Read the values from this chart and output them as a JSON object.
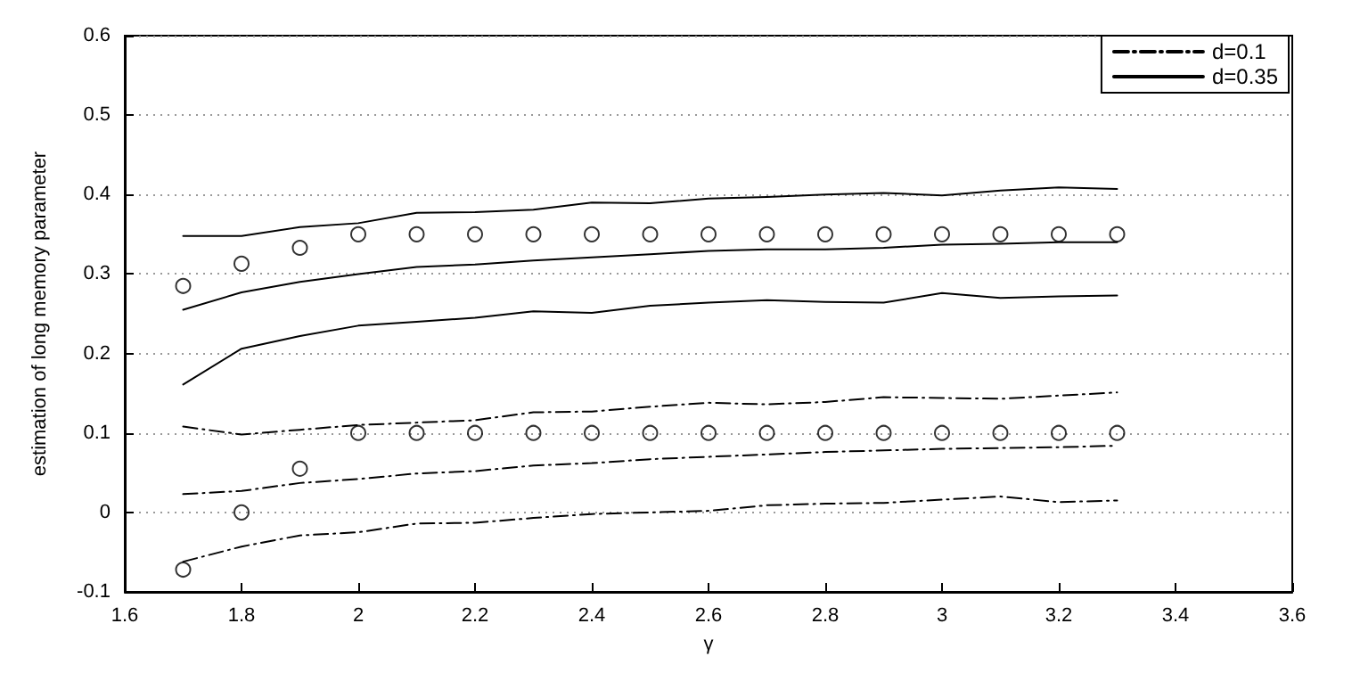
{
  "chart_data": {
    "type": "line",
    "xlabel": "γ",
    "ylabel": "estimation of long memory parameter",
    "x": [
      1.7,
      1.8,
      1.9,
      2.0,
      2.1,
      2.2,
      2.3,
      2.4,
      2.5,
      2.6,
      2.7,
      2.8,
      2.9,
      3.0,
      3.1,
      3.2,
      3.3
    ],
    "xlim": [
      1.6,
      3.6
    ],
    "xticks": [
      1.6,
      1.8,
      2,
      2.2,
      2.4,
      2.6,
      2.8,
      3,
      3.2,
      3.4,
      3.6
    ],
    "ylim": [
      -0.1,
      0.6
    ],
    "yticks": [
      -0.1,
      0,
      0.1,
      0.2,
      0.3,
      0.4,
      0.5,
      0.6
    ],
    "grid": "y",
    "legend": "top right",
    "series": [
      {
        "name": "d=0.1",
        "color": "#000000",
        "line_style": "dashdot",
        "values": [
          0.023,
          0.027,
          0.037,
          0.042,
          0.049,
          0.052,
          0.059,
          0.062,
          0.067,
          0.07,
          0.073,
          0.076,
          0.078,
          0.08,
          0.081,
          0.082,
          0.084
        ]
      },
      {
        "color": "#000000",
        "line_style": "dashdot",
        "values": [
          0.108,
          0.098,
          0.104,
          0.11,
          0.113,
          0.116,
          0.126,
          0.127,
          0.133,
          0.138,
          0.136,
          0.139,
          0.145,
          0.144,
          0.143,
          0.147,
          0.151
        ]
      },
      {
        "color": "#000000",
        "line_style": "dashdot",
        "values": [
          -0.062,
          -0.043,
          -0.029,
          -0.025,
          -0.014,
          -0.013,
          -0.007,
          -0.002,
          0,
          0.002,
          0.009,
          0.011,
          0.012,
          0.016,
          0.02,
          0.013,
          0.015
        ]
      },
      {
        "name": "d=0.35",
        "color": "#000000",
        "line_style": "solid",
        "values": [
          0.255,
          0.277,
          0.29,
          0.3,
          0.309,
          0.312,
          0.317,
          0.321,
          0.325,
          0.329,
          0.331,
          0.331,
          0.333,
          0.337,
          0.338,
          0.34,
          0.34
        ]
      },
      {
        "color": "#000000",
        "line_style": "solid",
        "values": [
          0.348,
          0.348,
          0.359,
          0.364,
          0.377,
          0.378,
          0.381,
          0.39,
          0.389,
          0.395,
          0.397,
          0.4,
          0.402,
          0.399,
          0.405,
          0.409,
          0.407
        ]
      },
      {
        "color": "#000000",
        "line_style": "solid",
        "values": [
          0.161,
          0.206,
          0.222,
          0.235,
          0.24,
          0.245,
          0.253,
          0.251,
          0.26,
          0.264,
          0.267,
          0.265,
          0.264,
          0.276,
          0.27,
          0.272,
          0.273
        ]
      },
      {
        "type": "scatter",
        "marker": "circle",
        "color": "#000000",
        "values": [
          -0.072,
          0,
          0.055,
          0.1,
          0.1,
          0.1,
          0.1,
          0.1,
          0.1,
          0.1,
          0.1,
          0.1,
          0.1,
          0.1,
          0.1,
          0.1,
          0.1
        ]
      },
      {
        "type": "scatter",
        "marker": "circle",
        "color": "#000000",
        "values": [
          0.285,
          0.313,
          0.333,
          0.35,
          0.35,
          0.35,
          0.35,
          0.35,
          0.35,
          0.35,
          0.35,
          0.35,
          0.35,
          0.35,
          0.35,
          0.35,
          0.35
        ]
      }
    ]
  }
}
